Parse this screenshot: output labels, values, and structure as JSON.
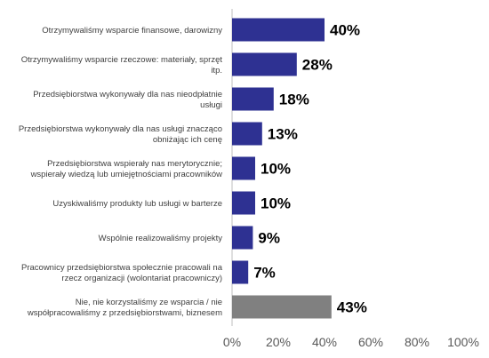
{
  "chart_data": {
    "type": "bar",
    "orientation": "horizontal",
    "categories": [
      [
        "Otrzymywaliśmy wsparcie finansowe, darowizny"
      ],
      [
        "Otrzymywaliśmy wsparcie rzeczowe: materiały, sprzęt",
        "itp."
      ],
      [
        "Przedsiębiorstwa wykonywały dla nas nieodpłatnie",
        "usługi"
      ],
      [
        "Przedsiębiorstwa wykonywały dla nas usługi znacząco",
        "obniżając ich cenę"
      ],
      [
        "Przedsiębiorstwa wspierały nas merytorycznie;",
        "wspierały wiedzą lub umiejętnościami pracowników"
      ],
      [
        "Uzyskiwaliśmy produkty lub usługi w barterze"
      ],
      [
        "Wspólnie realizowaliśmy projekty"
      ],
      [
        "Pracownicy przedsiębiorstwa społecznie pracowali na",
        "rzecz organizacji (wolontariat pracowniczy)"
      ],
      [
        "Nie, nie korzystaliśmy ze wsparcia / nie",
        "współpracowaliśmy z przedsiębiorstwami, biznesem"
      ]
    ],
    "values": [
      40,
      28,
      18,
      13,
      10,
      10,
      9,
      7,
      43
    ],
    "value_labels": [
      "40%",
      "28%",
      "18%",
      "13%",
      "10%",
      "10%",
      "9%",
      "7%",
      "43%"
    ],
    "bar_colors": [
      "#2E3192",
      "#2E3192",
      "#2E3192",
      "#2E3192",
      "#2E3192",
      "#2E3192",
      "#2E3192",
      "#2E3192",
      "#808080"
    ],
    "xlim": [
      0,
      100
    ],
    "x_ticks": [
      0,
      20,
      40,
      60,
      80,
      100
    ],
    "x_tick_labels": [
      "0%",
      "20%",
      "40%",
      "60%",
      "80%",
      "100%"
    ],
    "grid": false,
    "legend": "none"
  }
}
